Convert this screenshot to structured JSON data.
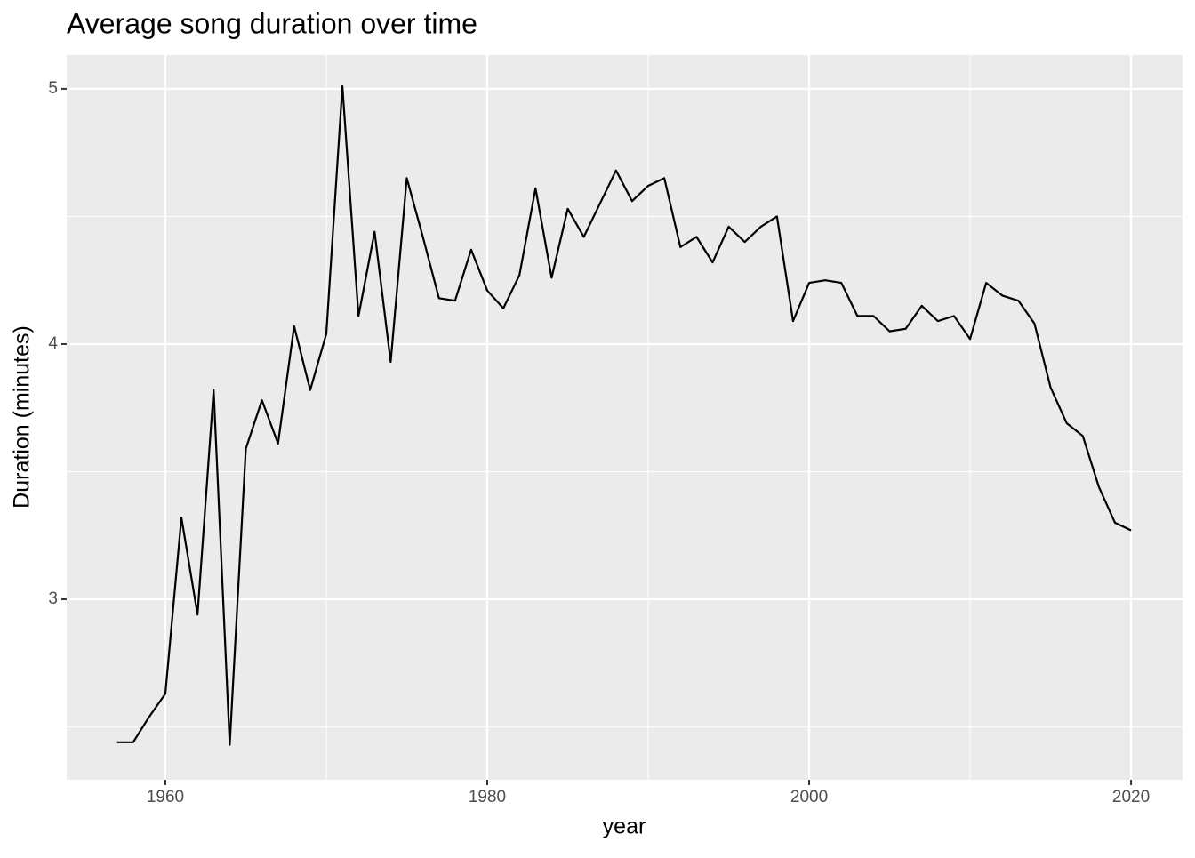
{
  "chart_data": {
    "type": "line",
    "title": "Average song duration over time",
    "x_label": "year",
    "y_label": "Duration (minutes)",
    "x": [
      1957,
      1958,
      1959,
      1960,
      1961,
      1962,
      1963,
      1964,
      1965,
      1966,
      1967,
      1968,
      1969,
      1970,
      1971,
      1972,
      1973,
      1974,
      1975,
      1976,
      1977,
      1978,
      1979,
      1980,
      1981,
      1982,
      1983,
      1984,
      1985,
      1986,
      1987,
      1988,
      1989,
      1990,
      1991,
      1992,
      1993,
      1994,
      1995,
      1996,
      1997,
      1998,
      1999,
      2000,
      2001,
      2002,
      2003,
      2004,
      2005,
      2006,
      2007,
      2008,
      2009,
      2010,
      2011,
      2012,
      2013,
      2014,
      2015,
      2016,
      2017,
      2018,
      2019,
      2020
    ],
    "series": [
      {
        "color": "#000000",
        "values": [
          2.44,
          2.44,
          2.54,
          2.63,
          3.32,
          2.94,
          3.82,
          2.43,
          3.59,
          3.78,
          3.61,
          4.07,
          3.82,
          4.04,
          5.01,
          4.11,
          4.44,
          3.93,
          4.65,
          4.42,
          4.18,
          4.17,
          4.37,
          4.21,
          4.14,
          4.27,
          4.61,
          4.26,
          4.53,
          4.42,
          4.55,
          4.68,
          4.56,
          4.62,
          4.65,
          4.38,
          4.42,
          4.32,
          4.46,
          4.4,
          4.46,
          4.5,
          4.09,
          4.24,
          4.25,
          4.24,
          4.11,
          4.11,
          4.05,
          4.06,
          4.15,
          4.09,
          4.11,
          4.02,
          4.24,
          4.19,
          4.17,
          4.08,
          3.83,
          3.69,
          3.64,
          3.44,
          3.3,
          3.27
        ]
      }
    ],
    "xlim": [
      1953.87,
      2023.2
    ],
    "ylim": [
      2.293,
      5.132
    ],
    "xticks": [
      1960,
      1980,
      2000,
      2020
    ],
    "yticks": [
      3,
      4,
      5
    ],
    "x_minor_grid": [
      1970,
      1990,
      2010
    ],
    "y_minor_grid": [
      2.5,
      3.5,
      4.5
    ],
    "grid": true,
    "panel_color": "#ebebeb"
  }
}
